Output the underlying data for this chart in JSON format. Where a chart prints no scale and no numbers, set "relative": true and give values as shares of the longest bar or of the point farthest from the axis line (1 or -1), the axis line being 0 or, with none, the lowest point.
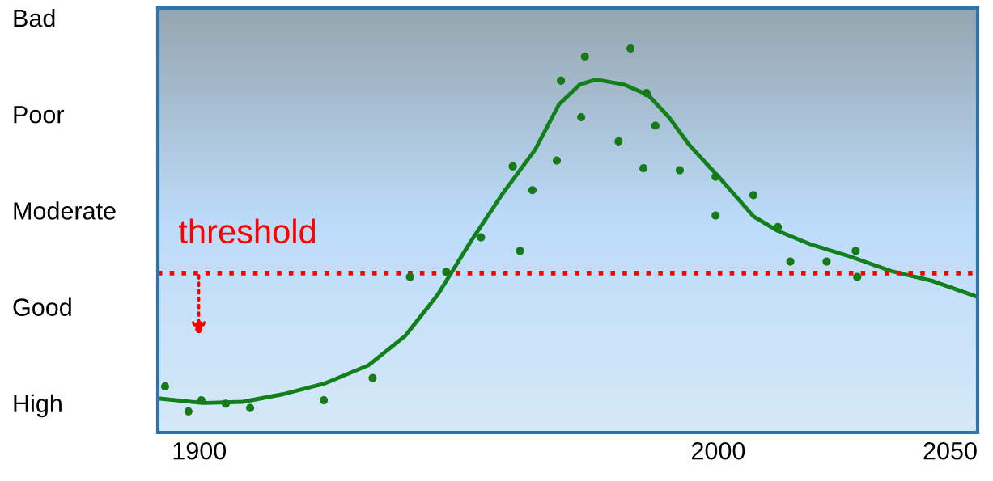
{
  "chart_data": {
    "type": "scatter",
    "xlim": [
      1892,
      2050
    ],
    "xticks": [
      1900,
      2000,
      2050
    ],
    "relative": true,
    "annotations": [
      "Bad",
      "Poor",
      "Moderate",
      "Good",
      "High"
    ],
    "grid": false,
    "marker": "circle",
    "series": [
      {
        "color": "#167a16",
        "x": [
          1893.4,
          1897.9,
          1900.4,
          1905.1,
          1909.8,
          1924.0,
          1933.4,
          1940.6,
          1947.6,
          1954.3,
          1960.4,
          1961.8,
          1964.2,
          1968.9,
          1969.7,
          1973.6,
          1974.3,
          1980.8,
          1983.1,
          1985.6,
          1986.2,
          1987.9,
          1992.6,
          1999.5,
          1999.5,
          2006.8,
          2011.5,
          2013.9,
          2020.9,
          2026.5,
          2026.8
        ],
        "values": [
          0.12,
          0.055,
          0.084,
          0.075,
          0.064,
          0.084,
          0.142,
          0.405,
          0.418,
          0.508,
          0.693,
          0.473,
          0.631,
          0.708,
          0.916,
          0.821,
          0.979,
          0.758,
          1.0,
          0.688,
          0.884,
          0.799,
          0.683,
          0.666,
          0.565,
          0.618,
          0.535,
          0.445,
          0.445,
          0.473,
          0.405
        ]
      },
      {
        "type": "line",
        "color": "#12801a",
        "marker": "none",
        "x": [
          1892,
          1900.6,
          1908.4,
          1916.2,
          1924,
          1932.6,
          1939.7,
          1945.9,
          1952.2,
          1958.4,
          1964.7,
          1969.3,
          1973.3,
          1976.4,
          1981.9,
          1986.5,
          1990.5,
          1994.3,
          2000.6,
          2006.8,
          2011.5,
          2017.8,
          2025.5,
          2033.4,
          2041.2,
          2050
        ],
        "values": [
          0.089,
          0.077,
          0.08,
          0.1,
          0.127,
          0.175,
          0.252,
          0.358,
          0.495,
          0.621,
          0.736,
          0.854,
          0.906,
          0.919,
          0.906,
          0.879,
          0.821,
          0.751,
          0.658,
          0.563,
          0.525,
          0.49,
          0.458,
          0.42,
          0.395,
          0.353
        ]
      }
    ],
    "ref_lines": [
      {
        "axis": "y",
        "value": 0.415,
        "label": "threshold",
        "color": "#ff0000",
        "line_style": "dotted"
      }
    ]
  }
}
